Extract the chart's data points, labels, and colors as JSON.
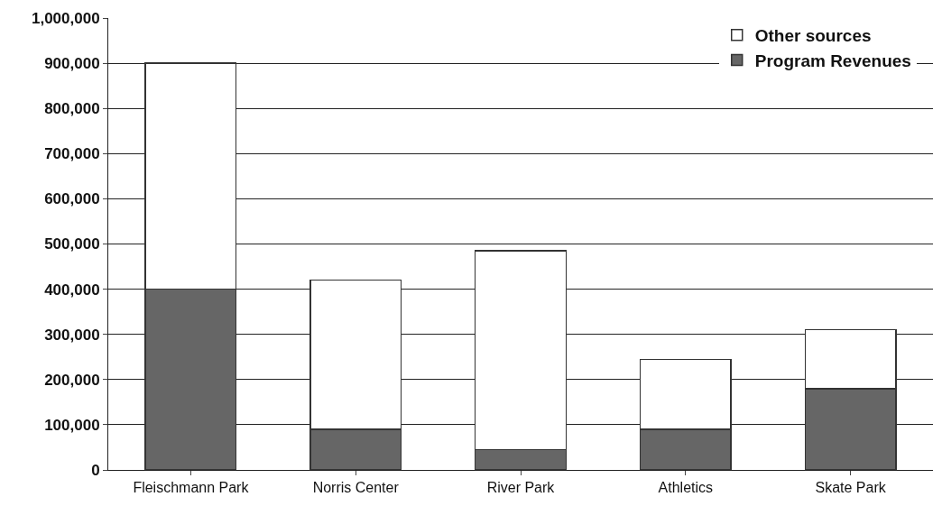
{
  "chart_data": {
    "type": "bar",
    "stacked": true,
    "categories": [
      "Fleischmann Park",
      "Norris Center",
      "River Park",
      "Athletics",
      "Skate Park"
    ],
    "series": [
      {
        "name": "Program Revenues",
        "color": "#666666",
        "values": [
          400000,
          90000,
          45000,
          90000,
          180000
        ]
      },
      {
        "name": "Other sources",
        "color": "#ffffff",
        "values": [
          500000,
          330000,
          440000,
          155000,
          130000
        ]
      }
    ],
    "ylim": [
      0,
      1000000
    ],
    "yticks": [
      0,
      {
        "value": 100000,
        "label": "100,000"
      },
      {
        "value": 200000,
        "label": "200,000"
      },
      {
        "value": 300000,
        "label": "300,000"
      },
      {
        "value": 400000,
        "label": "400,000"
      },
      {
        "value": 500000,
        "label": "500,000"
      },
      {
        "value": 600000,
        "label": "600,000"
      },
      {
        "value": 700000,
        "label": "700,000"
      },
      {
        "value": 800000,
        "label": "800,000"
      },
      {
        "value": 900000,
        "label": "900,000"
      },
      {
        "value": 1000000,
        "label": "1,000,000"
      }
    ],
    "grid": true,
    "legend": "top right"
  }
}
